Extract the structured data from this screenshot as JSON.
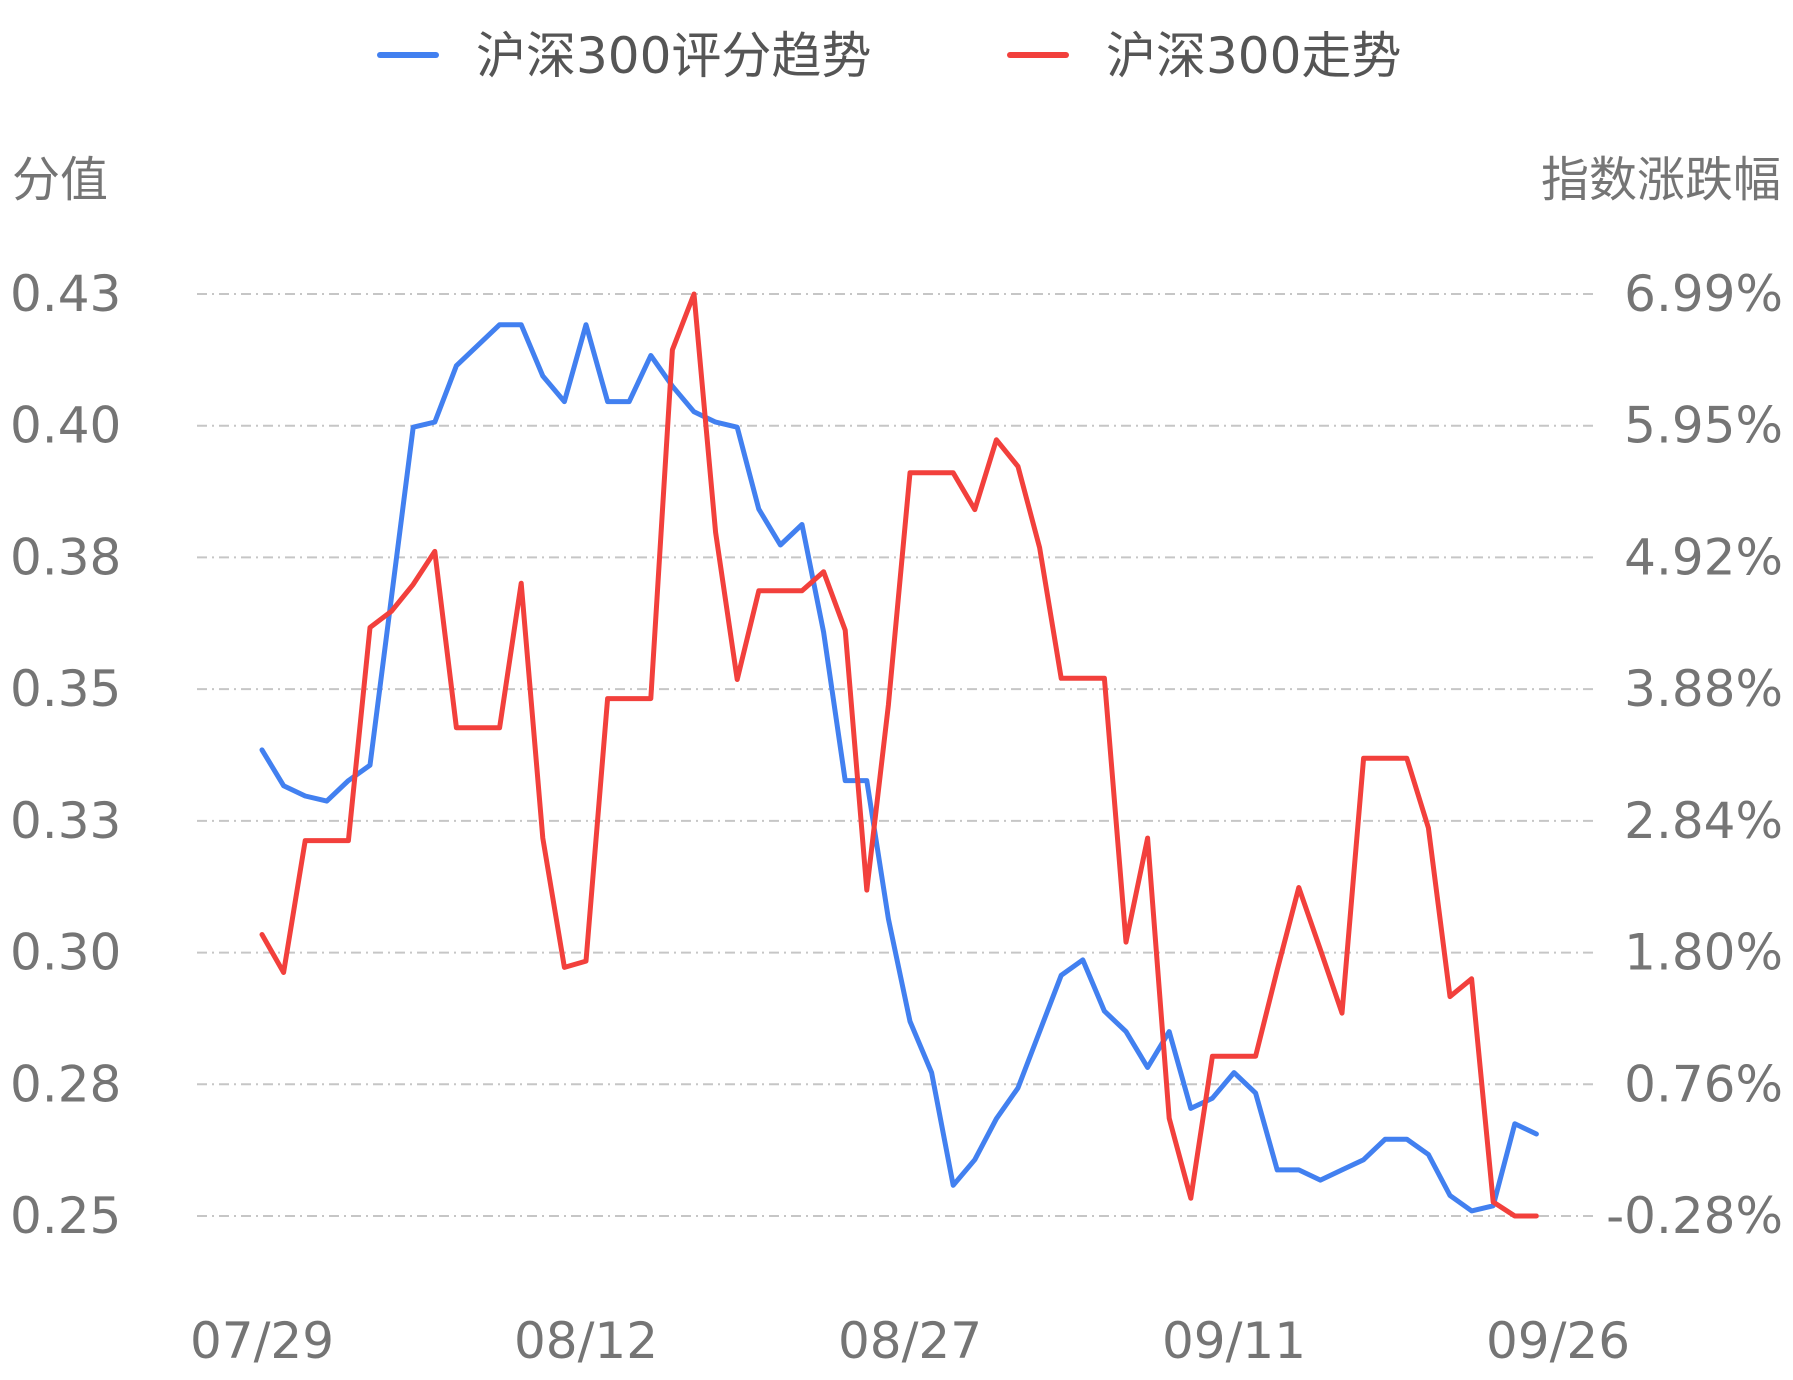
{
  "chart_data": {
    "type": "line",
    "legend_position": "top-center",
    "grid": "horizontal-dashed",
    "left_axis_label": "分值",
    "right_axis_label": "指数涨跌幅",
    "left_ticks": [
      "0.43",
      "0.40",
      "0.38",
      "0.35",
      "0.33",
      "0.30",
      "0.28",
      "0.25"
    ],
    "right_ticks": [
      "6.99%",
      "5.95%",
      "4.92%",
      "3.88%",
      "2.84%",
      "1.80%",
      "0.76%",
      "-0.28%"
    ],
    "left_range": [
      0.25,
      0.43
    ],
    "right_range": [
      -0.28,
      6.99
    ],
    "x_tick_labels": [
      "07/29",
      "08/12",
      "08/27",
      "09/11",
      "09/26"
    ],
    "series": [
      {
        "name": "沪深300评分趋势",
        "axis": "left",
        "color": "#4280f0",
        "values": [
          0.341,
          0.334,
          0.332,
          0.331,
          0.335,
          0.338,
          0.371,
          0.404,
          0.405,
          0.416,
          0.42,
          0.424,
          0.424,
          0.414,
          0.409,
          0.424,
          0.409,
          0.409,
          0.418,
          0.412,
          0.407,
          0.405,
          0.404,
          0.388,
          0.381,
          0.385,
          0.364,
          0.335,
          0.335,
          0.308,
          0.288,
          0.278,
          0.256,
          0.261,
          0.269,
          0.275,
          0.286,
          0.297,
          0.3,
          0.29,
          0.286,
          0.279,
          0.286,
          0.271,
          0.273,
          0.278,
          0.274,
          0.259,
          0.259,
          0.257,
          0.259,
          0.261,
          0.265,
          0.265,
          0.262,
          0.254,
          0.251,
          0.252,
          0.268,
          0.266
        ]
      },
      {
        "name": "沪深300走势",
        "axis": "right",
        "color": "#f2403c",
        "values": [
          1.94,
          1.64,
          2.68,
          2.68,
          2.68,
          4.36,
          4.49,
          4.7,
          4.96,
          3.57,
          3.57,
          3.57,
          4.71,
          2.7,
          1.68,
          1.73,
          3.8,
          3.8,
          3.8,
          6.55,
          6.99,
          5.11,
          3.95,
          4.65,
          4.65,
          4.65,
          4.8,
          4.34,
          2.29,
          3.75,
          5.58,
          5.58,
          5.58,
          5.29,
          5.84,
          5.63,
          4.99,
          3.96,
          3.96,
          3.96,
          1.88,
          2.7,
          0.49,
          -0.14,
          0.98,
          0.98,
          0.98,
          1.66,
          2.31,
          1.82,
          1.32,
          3.33,
          3.33,
          3.33,
          2.78,
          1.45,
          1.59,
          -0.17,
          -0.28,
          -0.28
        ]
      }
    ]
  }
}
